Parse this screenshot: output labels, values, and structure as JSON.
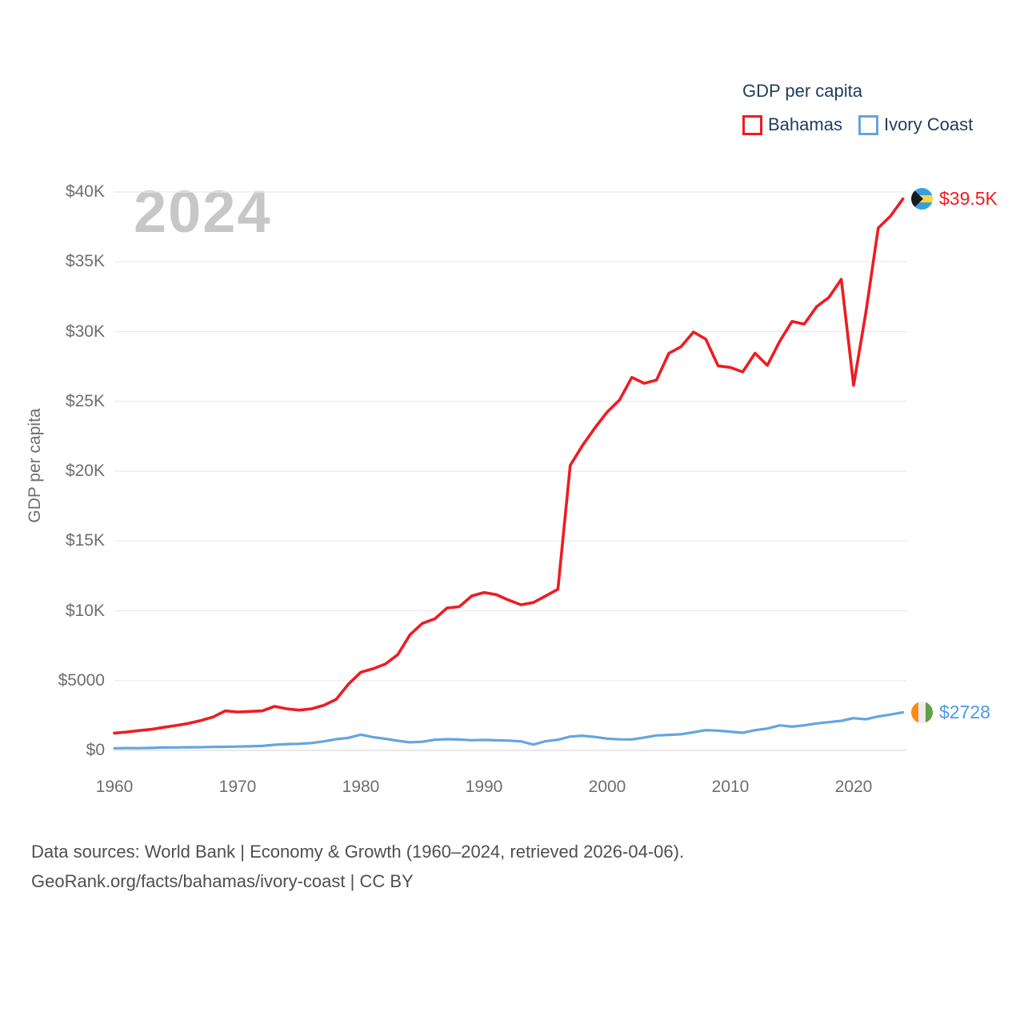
{
  "watermark": "2024",
  "legend": {
    "title": "GDP per capita",
    "series": [
      {
        "label": "Bahamas"
      },
      {
        "label": "Ivory Coast"
      }
    ]
  },
  "y_axis": {
    "title": "GDP per capita",
    "tick_values": [
      0,
      5000,
      10000,
      15000,
      20000,
      25000,
      30000,
      35000,
      40000
    ],
    "tick_labels": [
      "$0",
      "$5000",
      "$10K",
      "$15K",
      "$20K",
      "$25K",
      "$30K",
      "$35K",
      "$40K"
    ]
  },
  "x_axis": {
    "tick_values": [
      1960,
      1970,
      1980,
      1990,
      2000,
      2010,
      2020
    ],
    "tick_labels": [
      "1960",
      "1970",
      "1980",
      "1990",
      "2000",
      "2010",
      "2020"
    ]
  },
  "end_labels": [
    {
      "series": "Bahamas",
      "text": "$39.5K",
      "color": "#ee1c23",
      "flag": "bahamas-flag"
    },
    {
      "series": "Ivory Coast",
      "text": "$2728",
      "color": "#4d9be4",
      "flag": "ivory-coast-flag"
    }
  ],
  "footer": {
    "line1": "Data sources: World Bank | Economy & Growth (1960–2024, retrieved 2026-04-06).",
    "line2": "GeoRank.org/facts/bahamas/ivory-coast | CC BY"
  },
  "chart_data": {
    "type": "line",
    "title": "GDP per capita",
    "ylabel": "GDP per capita",
    "xlabel": "",
    "ylim": [
      0,
      40000
    ],
    "xlim": [
      1960,
      2024
    ],
    "grid": true,
    "legend_position": "top-right",
    "x": [
      1960,
      1961,
      1962,
      1963,
      1964,
      1965,
      1966,
      1967,
      1968,
      1969,
      1970,
      1971,
      1972,
      1973,
      1974,
      1975,
      1976,
      1977,
      1978,
      1979,
      1980,
      1981,
      1982,
      1983,
      1984,
      1985,
      1986,
      1987,
      1988,
      1989,
      1990,
      1991,
      1992,
      1993,
      1994,
      1995,
      1996,
      1997,
      1998,
      1999,
      2000,
      2001,
      2002,
      2003,
      2004,
      2005,
      2006,
      2007,
      2008,
      2009,
      2010,
      2011,
      2012,
      2013,
      2014,
      2015,
      2016,
      2017,
      2018,
      2019,
      2020,
      2021,
      2022,
      2023,
      2024
    ],
    "series": [
      {
        "name": "Bahamas",
        "color": "#ee1c23",
        "values": [
          1240,
          1320,
          1420,
          1510,
          1650,
          1780,
          1930,
          2140,
          2390,
          2830,
          2750,
          2790,
          2830,
          3150,
          2980,
          2880,
          2980,
          3230,
          3650,
          4750,
          5600,
          5850,
          6190,
          6860,
          8290,
          9100,
          9420,
          10200,
          10300,
          11060,
          11310,
          11160,
          10770,
          10430,
          10590,
          11060,
          11540,
          20420,
          21850,
          23100,
          24240,
          25100,
          26720,
          26300,
          26530,
          28440,
          28920,
          29970,
          29460,
          27550,
          27430,
          27110,
          28450,
          27580,
          29300,
          30730,
          30540,
          31790,
          32450,
          33750,
          26150,
          31400,
          37420,
          38280,
          39500
        ]
      },
      {
        "name": "Ivory Coast",
        "color": "#64a5e0",
        "values": [
          157,
          166,
          160,
          180,
          205,
          210,
          225,
          230,
          250,
          260,
          275,
          290,
          320,
          400,
          450,
          470,
          530,
          650,
          800,
          900,
          1130,
          950,
          830,
          690,
          580,
          620,
          760,
          800,
          780,
          730,
          750,
          720,
          700,
          650,
          420,
          660,
          760,
          990,
          1050,
          960,
          840,
          790,
          785,
          920,
          1070,
          1110,
          1160,
          1300,
          1450,
          1415,
          1340,
          1260,
          1450,
          1565,
          1795,
          1700,
          1795,
          1930,
          2025,
          2120,
          2310,
          2230,
          2430,
          2570,
          2728
        ]
      }
    ]
  }
}
